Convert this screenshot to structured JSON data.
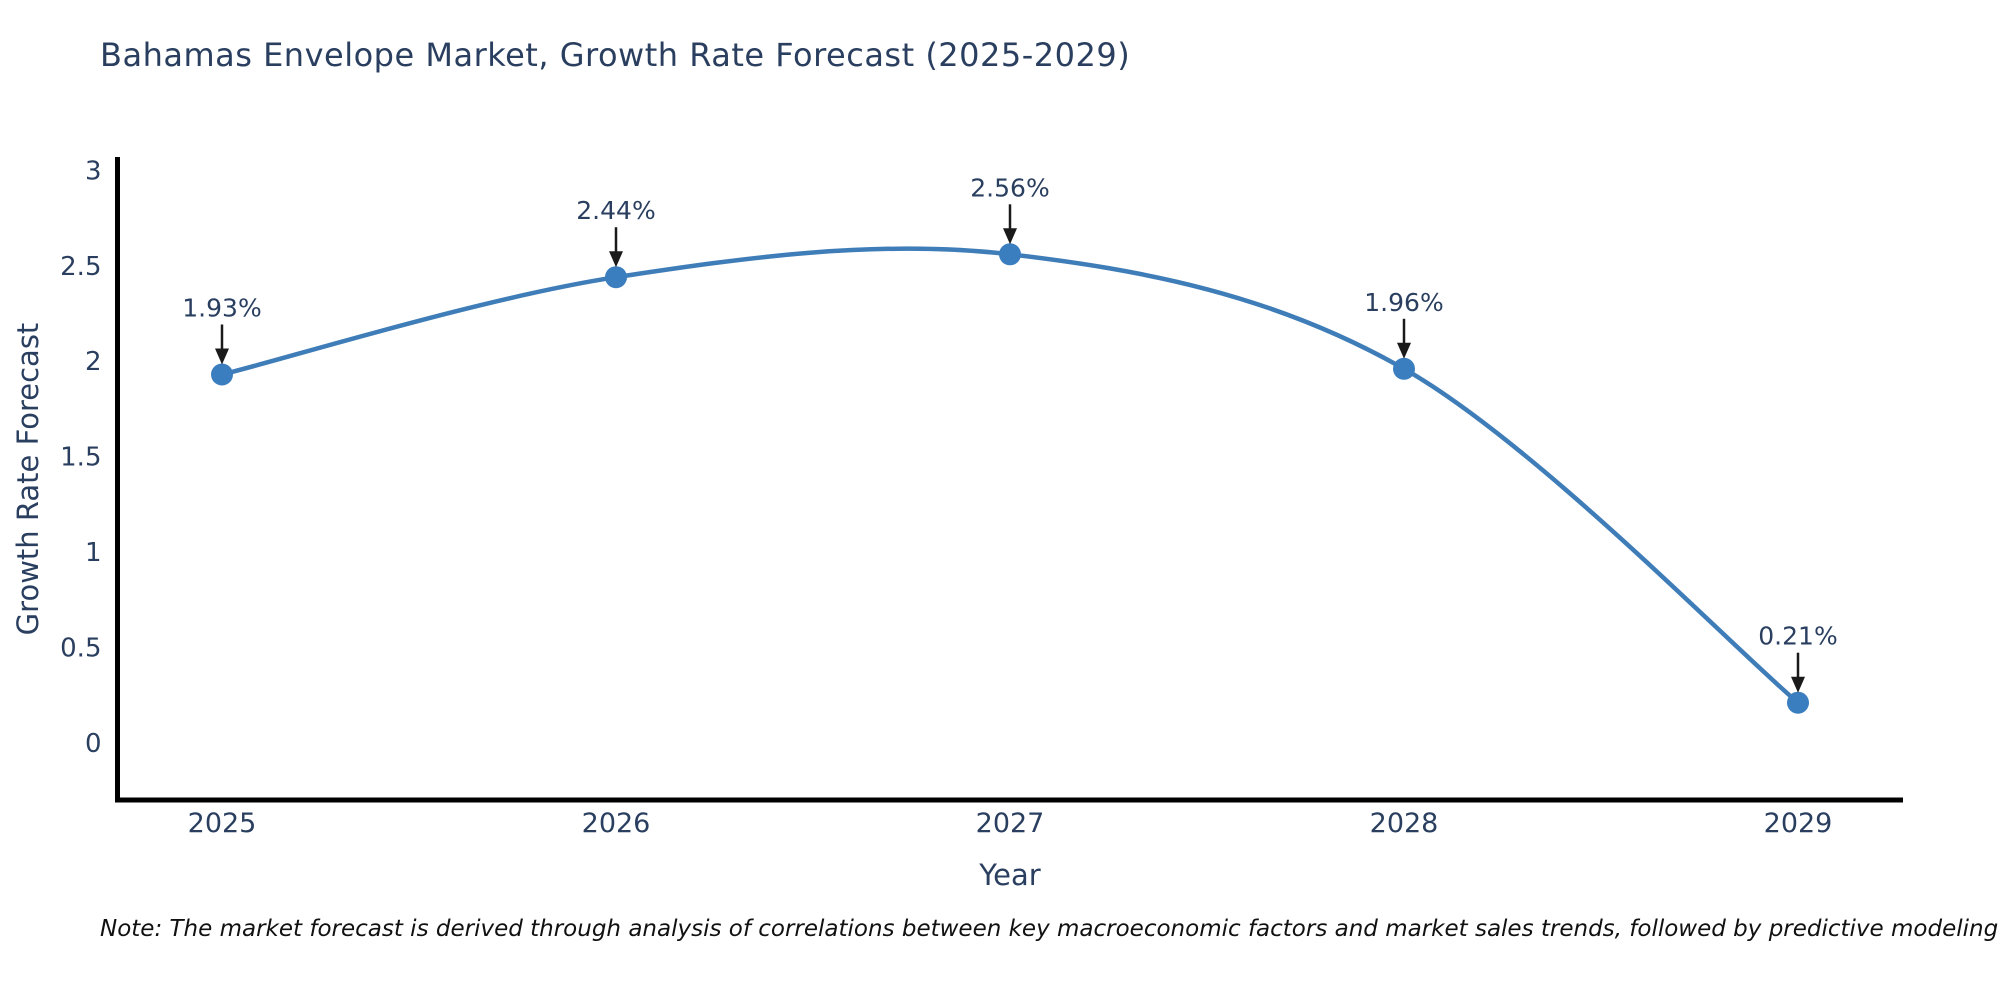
{
  "chart_data": {
    "type": "line",
    "title": "Bahamas Envelope Market, Growth Rate Forecast (2025-2029)",
    "xlabel": "Year",
    "ylabel": "Growth Rate Forecast",
    "categories": [
      "2025",
      "2026",
      "2027",
      "2028",
      "2029"
    ],
    "series": [
      {
        "name": "Growth Rate Forecast",
        "values": [
          1.93,
          2.44,
          2.56,
          1.96,
          0.21
        ],
        "point_labels": [
          "1.93%",
          "2.44%",
          "2.56%",
          "1.96%",
          "0.21%"
        ]
      }
    ],
    "y_ticks": [
      0,
      0.5,
      1,
      1.5,
      2,
      2.5,
      3
    ],
    "y_tick_labels": [
      "0",
      "0.5",
      "1",
      "1.5",
      "2",
      "2.5",
      "3"
    ],
    "ylim": [
      -0.3,
      3.07
    ],
    "line_shape": "spline",
    "grid": false,
    "legend": "none",
    "colors": {
      "line": "#3f7db8",
      "marker": "#3a7ebf",
      "axis": "#000000",
      "text": "#2a3f5f",
      "annotation_arrow": "#1a1a1a"
    },
    "note": "Note: The market forecast is derived through analysis of correlations between key macroeconomic factors and market sales trends, followed by predictive modeling to project future sales"
  }
}
